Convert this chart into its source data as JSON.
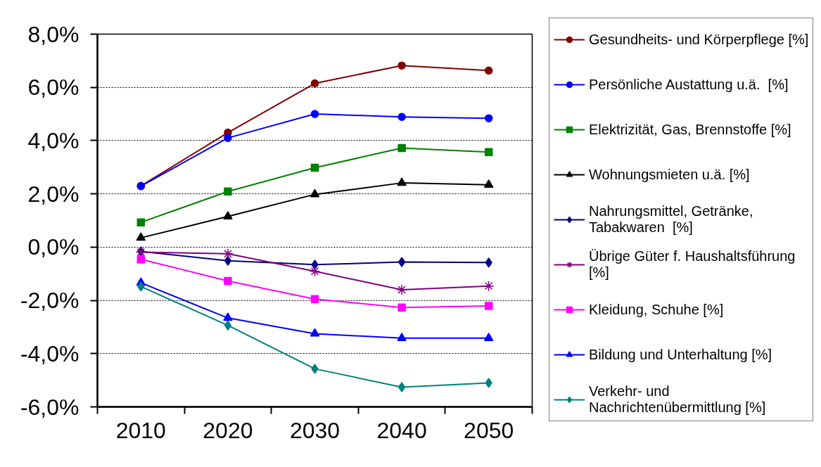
{
  "chart_data": {
    "type": "line",
    "categories": [
      "2010",
      "2020",
      "2030",
      "2040",
      "2050"
    ],
    "ylim": [
      -6,
      8
    ],
    "yticks": [
      {
        "value": -6,
        "label": "-6,0%"
      },
      {
        "value": -4,
        "label": "-4,0%"
      },
      {
        "value": -2,
        "label": "-2,0%"
      },
      {
        "value": 0,
        "label": "0,0%"
      },
      {
        "value": 2,
        "label": "2,0%"
      },
      {
        "value": 4,
        "label": "4,0%"
      },
      {
        "value": 6,
        "label": "6,0%"
      },
      {
        "value": 8,
        "label": "8,0%"
      }
    ],
    "grid": "y",
    "legend": "right",
    "line_style": "solid",
    "series": [
      {
        "name": "Gesundheits- und Körperpflege [%]",
        "color": "#800000",
        "marker": "circle",
        "values": [
          2.3,
          4.3,
          6.15,
          6.82,
          6.63
        ]
      },
      {
        "name": "Persönliche Austattung u.ä.  [%]",
        "color": "#0000ff",
        "marker": "circle",
        "values": [
          2.29,
          4.1,
          5.0,
          4.89,
          4.84
        ]
      },
      {
        "name": "Elektrizität, Gas, Brennstoffe [%]",
        "color": "#008000",
        "marker": "square",
        "values": [
          0.93,
          2.09,
          2.98,
          3.72,
          3.57
        ]
      },
      {
        "name": "Wohnungsmieten u.ä. [%]",
        "color": "#000000",
        "marker": "triangle",
        "values": [
          0.35,
          1.15,
          1.98,
          2.41,
          2.34
        ]
      },
      {
        "name": "Nahrungsmittel, Getränke, Tabakwaren  [%]",
        "color": "#000080",
        "marker": "diamond",
        "values": [
          -0.16,
          -0.51,
          -0.66,
          -0.56,
          -0.58
        ]
      },
      {
        "name": "Übrige Güter f. Haushaltsführung [%]",
        "color": "#800080",
        "marker": "cross",
        "values": [
          -0.19,
          -0.25,
          -0.91,
          -1.6,
          -1.46
        ]
      },
      {
        "name": "Kleidung, Schuhe [%]",
        "color": "#ff00ff",
        "marker": "square",
        "values": [
          -0.46,
          -1.27,
          -1.95,
          -2.27,
          -2.21
        ]
      },
      {
        "name": "Bildung und Unterhaltung [%]",
        "color": "#0000ff",
        "marker": "triangle",
        "values": [
          -1.34,
          -2.66,
          -3.25,
          -3.42,
          -3.42
        ]
      },
      {
        "name": "Verkehr- und Nachrichtenübermittlung [%]",
        "color": "#008080",
        "marker": "diamond",
        "values": [
          -1.48,
          -2.94,
          -4.57,
          -5.26,
          -5.1
        ]
      }
    ]
  }
}
